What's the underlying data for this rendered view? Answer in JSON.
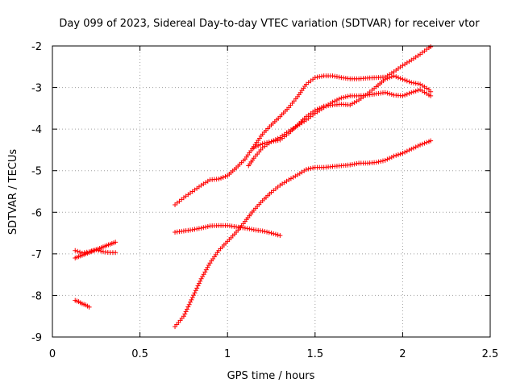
{
  "chart_data": {
    "type": "scatter",
    "title": "Day 099 of 2023, Sidereal Day-to-day VTEC variation (SDTVAR) for receiver vtor",
    "xlabel": "GPS time / hours",
    "ylabel": "SDTVAR / TECUs",
    "xlim": [
      0,
      2.5
    ],
    "ylim": [
      -9,
      -2
    ],
    "x_ticks": [
      "0",
      "0.5",
      "1",
      "1.5",
      "2",
      "2.5"
    ],
    "y_ticks": [
      "-2",
      "-3",
      "-4",
      "-5",
      "-6",
      "-7",
      "-8",
      "-9"
    ],
    "grid": true,
    "marker": "+",
    "color": "#ff0000",
    "series": [
      {
        "x": [
          0.13,
          0.16,
          0.19,
          0.22,
          0.25,
          0.28,
          0.31,
          0.34,
          0.36
        ],
        "y": [
          -7.1,
          -7.05,
          -7.0,
          -6.95,
          -6.9,
          -6.85,
          -6.8,
          -6.75,
          -6.72
        ]
      },
      {
        "x": [
          0.13,
          0.17,
          0.21,
          0.25,
          0.29,
          0.33,
          0.36
        ],
        "y": [
          -6.92,
          -6.98,
          -6.95,
          -6.9,
          -6.95,
          -6.97,
          -6.97
        ]
      },
      {
        "x": [
          0.13,
          0.15,
          0.17,
          0.19,
          0.21
        ],
        "y": [
          -8.12,
          -8.15,
          -8.2,
          -8.23,
          -8.28
        ]
      },
      {
        "x": [
          0.7,
          0.75,
          0.8,
          0.85,
          0.9,
          0.95,
          1.0,
          1.05,
          1.1,
          1.15,
          1.2,
          1.25,
          1.3,
          1.35,
          1.4,
          1.45,
          1.5,
          1.55,
          1.6,
          1.65,
          1.7,
          1.75,
          1.8,
          1.85,
          1.9,
          1.95,
          2.0,
          2.05,
          2.1,
          2.15,
          2.16
        ],
        "y": [
          -5.82,
          -5.65,
          -5.5,
          -5.35,
          -5.22,
          -5.2,
          -5.12,
          -4.93,
          -4.72,
          -4.42,
          -4.12,
          -3.9,
          -3.7,
          -3.48,
          -3.22,
          -2.92,
          -2.76,
          -2.72,
          -2.72,
          -2.76,
          -2.79,
          -2.79,
          -2.77,
          -2.76,
          -2.75,
          -2.62,
          -2.47,
          -2.34,
          -2.2,
          -2.04,
          -2.02
        ]
      },
      {
        "x": [
          0.7,
          0.75,
          0.8,
          0.85,
          0.9,
          0.95,
          1.0,
          1.05,
          1.1,
          1.15,
          1.2,
          1.25,
          1.3
        ],
        "y": [
          -6.48,
          -6.45,
          -6.42,
          -6.38,
          -6.33,
          -6.32,
          -6.32,
          -6.35,
          -6.38,
          -6.42,
          -6.45,
          -6.5,
          -6.56
        ]
      },
      {
        "x": [
          0.7,
          0.75,
          0.8,
          0.85,
          0.9,
          0.95,
          1.0,
          1.05,
          1.1,
          1.15,
          1.2,
          1.25,
          1.3,
          1.35,
          1.4,
          1.45,
          1.5,
          1.55,
          1.6,
          1.65,
          1.7,
          1.75,
          1.8,
          1.85,
          1.9,
          1.95,
          2.0,
          2.05,
          2.1,
          2.15,
          2.16
        ],
        "y": [
          -8.75,
          -8.5,
          -8.05,
          -7.6,
          -7.22,
          -6.92,
          -6.7,
          -6.48,
          -6.22,
          -5.95,
          -5.72,
          -5.52,
          -5.35,
          -5.22,
          -5.1,
          -4.97,
          -4.92,
          -4.92,
          -4.9,
          -4.88,
          -4.86,
          -4.82,
          -4.82,
          -4.8,
          -4.75,
          -4.65,
          -4.58,
          -4.48,
          -4.38,
          -4.3,
          -4.28
        ]
      },
      {
        "x": [
          1.12,
          1.15,
          1.2,
          1.25,
          1.3,
          1.35,
          1.4,
          1.45,
          1.5,
          1.55,
          1.6,
          1.65,
          1.7,
          1.75,
          1.8,
          1.85,
          1.9,
          1.95,
          2.0,
          2.05,
          2.1,
          2.15,
          2.16
        ],
        "y": [
          -4.88,
          -4.7,
          -4.45,
          -4.3,
          -4.26,
          -4.1,
          -3.9,
          -3.7,
          -3.55,
          -3.45,
          -3.42,
          -3.4,
          -3.42,
          -3.3,
          -3.15,
          -2.98,
          -2.8,
          -2.72,
          -2.8,
          -2.88,
          -2.92,
          -3.05,
          -3.1
        ]
      },
      {
        "x": [
          1.15,
          1.2,
          1.25,
          1.3,
          1.35,
          1.4,
          1.45,
          1.5,
          1.55,
          1.6,
          1.65,
          1.7,
          1.75,
          1.8,
          1.85,
          1.9,
          1.95,
          2.0,
          2.05,
          2.1,
          2.15,
          2.16
        ],
        "y": [
          -4.45,
          -4.35,
          -4.3,
          -4.2,
          -4.05,
          -3.92,
          -3.78,
          -3.62,
          -3.48,
          -3.35,
          -3.25,
          -3.2,
          -3.2,
          -3.18,
          -3.15,
          -3.12,
          -3.18,
          -3.2,
          -3.12,
          -3.05,
          -3.18,
          -3.2
        ]
      }
    ]
  }
}
